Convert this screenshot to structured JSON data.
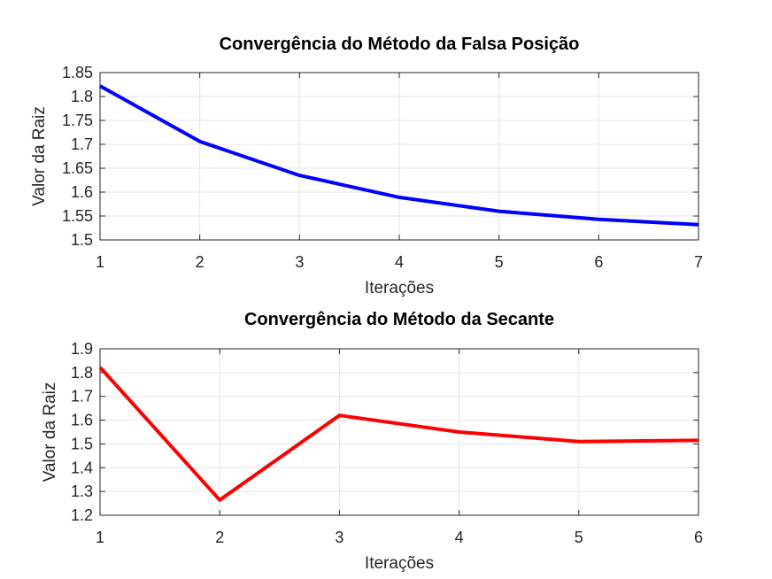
{
  "chart_data": [
    {
      "type": "line",
      "title": "Convergência do Método da Falsa Posição",
      "xlabel": "Iterações",
      "ylabel": "Valor da Raiz",
      "xlim": [
        1,
        7
      ],
      "ylim": [
        1.5,
        1.85
      ],
      "xticks": [
        "1",
        "2",
        "3",
        "4",
        "5",
        "6",
        "7"
      ],
      "yticks": [
        "1.5",
        "1.55",
        "1.6",
        "1.65",
        "1.7",
        "1.75",
        "1.8",
        "1.85"
      ],
      "grid": true,
      "color": "#0000ff",
      "x": [
        1,
        2,
        3,
        4,
        5,
        6,
        7
      ],
      "y": [
        1.822,
        1.706,
        1.635,
        1.589,
        1.56,
        1.543,
        1.532
      ]
    },
    {
      "type": "line",
      "title": "Convergência do Método da Secante",
      "xlabel": "Iterações",
      "ylabel": "Valor da Raiz",
      "xlim": [
        1,
        6
      ],
      "ylim": [
        1.2,
        1.9
      ],
      "xticks": [
        "1",
        "2",
        "3",
        "4",
        "5",
        "6"
      ],
      "yticks": [
        "1.2",
        "1.3",
        "1.4",
        "1.5",
        "1.6",
        "1.7",
        "1.8",
        "1.9"
      ],
      "grid": true,
      "color": "#ff0000",
      "x": [
        1,
        2,
        3,
        4,
        5,
        6
      ],
      "y": [
        1.822,
        1.264,
        1.62,
        1.55,
        1.51,
        1.515
      ]
    }
  ]
}
